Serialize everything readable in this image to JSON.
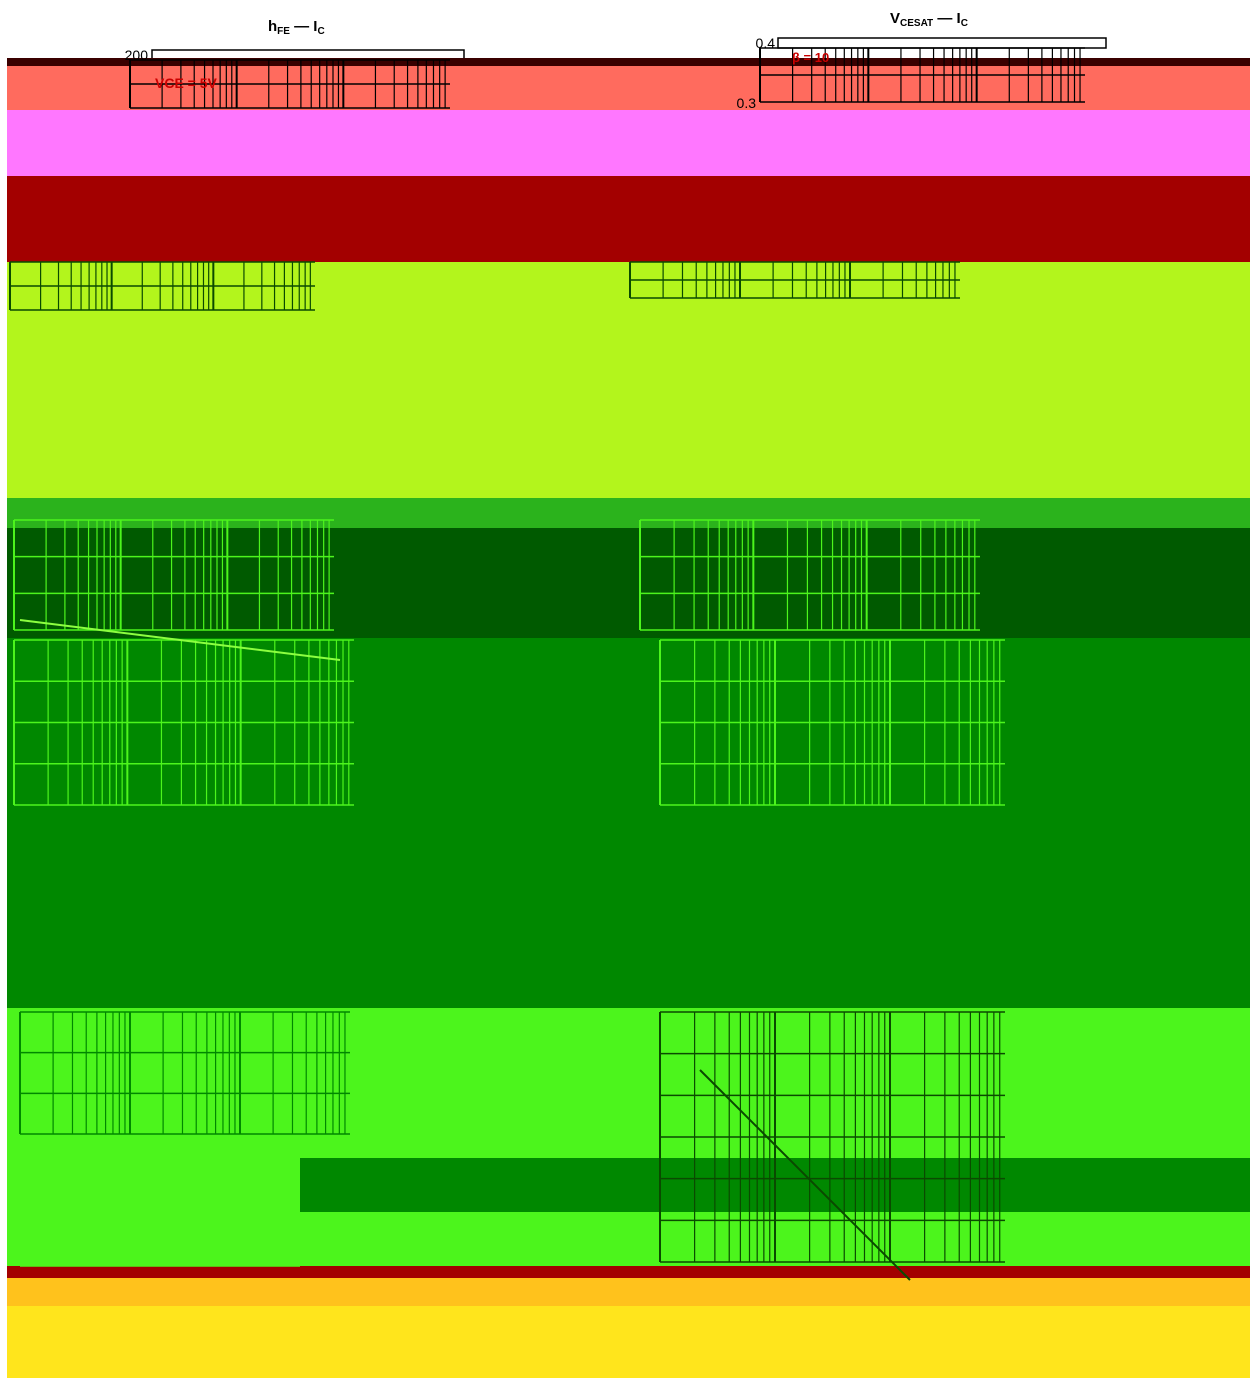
{
  "colors": {
    "dark_maroon": "#3a0000",
    "salmon": "#ff6b5e",
    "magenta": "#ff77ff",
    "dark_red": "#a30000",
    "yellow_green": "#b3f51c",
    "mid_green": "#2bb31c",
    "dark_green": "#005a00",
    "green": "#008800",
    "bright_green": "#4cf51c",
    "gold": "#ffc21c",
    "yellow": "#ffe51c",
    "grid_dark": "#0a4a00",
    "grid_light": "#c8ff80",
    "red_text": "#cc0000"
  },
  "charts": {
    "hfe_ic": {
      "title_main": "h",
      "title_sub": "FE",
      "title_dash": "—",
      "title_ic": "I",
      "title_ic_sub": "C"
    },
    "vcesat_ic": {
      "title_main": "V",
      "title_sub": "CESAT",
      "title_dash": "—",
      "title_ic": "I",
      "title_ic_sub": "C"
    }
  },
  "chart_data": [
    {
      "type": "line",
      "title": "hFE — IC",
      "ytick_labels": [
        "200"
      ],
      "annotation": "VCE = 5V"
    },
    {
      "type": "line",
      "title": "VCESAT — IC",
      "ytick_labels": [
        "0.4",
        "0.3"
      ],
      "annotation": "β = 10"
    }
  ]
}
